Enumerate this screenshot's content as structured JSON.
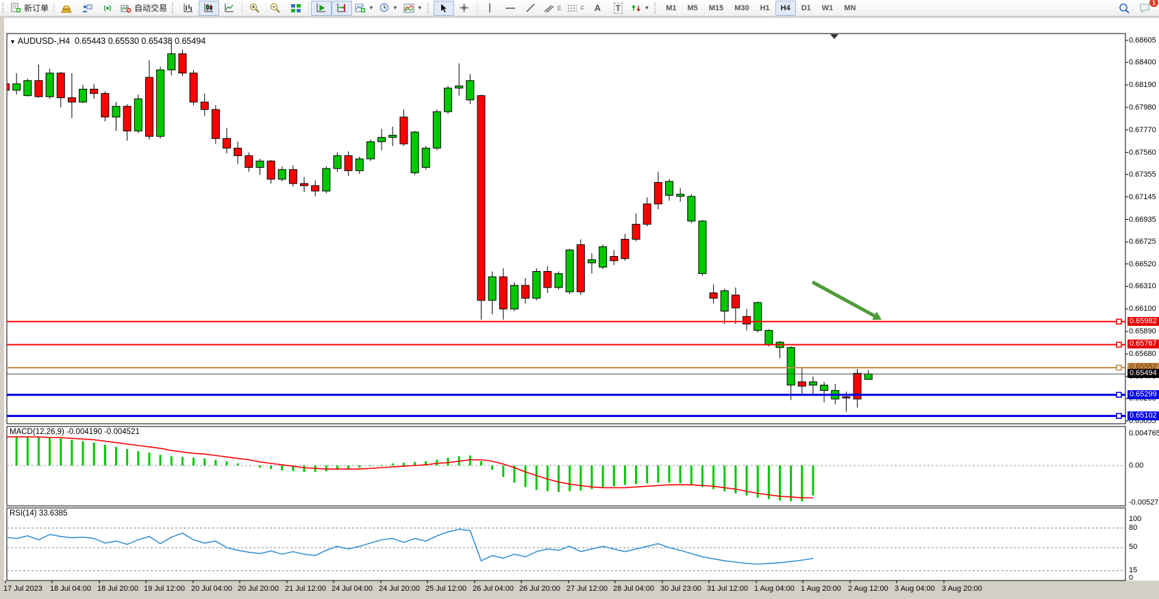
{
  "toolbar": {
    "new_order_label": "新订单",
    "autotrading_label": "自动交易",
    "timeframes": [
      "M1",
      "M5",
      "M15",
      "M30",
      "H1",
      "H4",
      "D1",
      "W1",
      "MN"
    ],
    "active_timeframe": "H4",
    "chat_badge": "1"
  },
  "icons": {
    "title_caret": "▼",
    "text_tool": "A",
    "label_tool": "T",
    "channel_sub": "E",
    "fibo_sub": "F"
  },
  "chart": {
    "title": "AUDUSD-,H4",
    "ohlc": "0.65443 0.65530 0.65438 0.65494",
    "macd_label": "MACD(12,26,9) -0.004190 -0.004521",
    "rsi_label": "RSI(14) 33.6385"
  },
  "chart_data": {
    "type": "candlestick",
    "symbol": "AUDUSD-",
    "timeframe": "H4",
    "colors": {
      "up": "#00C800",
      "down": "#FF0000",
      "wick": "#000000",
      "macd_hist": "#00C800",
      "macd_signal": "#FF0000",
      "rsi": "#3A92D0",
      "arrow": "#4E9C36",
      "bid": "#444444"
    },
    "price_axis_ticks": [
      "0.68605",
      "0.68400",
      "0.68190",
      "0.67980",
      "0.67770",
      "0.67560",
      "0.67355",
      "0.67145",
      "0.66935",
      "0.66725",
      "0.66520",
      "0.66310",
      "0.66100",
      "0.65890",
      "0.65680",
      "0.65470",
      "0.65265",
      "0.65055"
    ],
    "time_axis_labels": [
      "17 Jul 2023",
      "18 Jul 04:00",
      "18 Jul 20:00",
      "19 Jul 12:00",
      "20 Jul 04:00",
      "20 Jul 20:00",
      "21 Jul 12:00",
      "24 Jul 04:00",
      "24 Jul 20:00",
      "25 Jul 12:00",
      "26 Jul 04:00",
      "26 Jul 20:00",
      "27 Jul 12:00",
      "28 Jul 04:00",
      "30 Jul 23:00",
      "31 Jul 12:00",
      "1 Aug 04:00",
      "1 Aug 20:00",
      "2 Aug 12:00",
      "3 Aug 04:00",
      "3 Aug 20:00"
    ],
    "time_label_x": [
      5,
      73,
      142,
      210,
      279,
      347,
      416,
      484,
      553,
      621,
      690,
      758,
      827,
      895,
      964,
      1032,
      1101,
      1169,
      1238,
      1306,
      1375
    ],
    "candles": [
      [
        0.682,
        0.6824,
        0.6812,
        0.6814
      ],
      [
        0.6814,
        0.683,
        0.681,
        0.682
      ],
      [
        0.6809,
        0.6825,
        0.6808,
        0.6823
      ],
      [
        0.6823,
        0.6838,
        0.6807,
        0.6808
      ],
      [
        0.6808,
        0.6834,
        0.6806,
        0.683
      ],
      [
        0.683,
        0.6831,
        0.6798,
        0.6807
      ],
      [
        0.6807,
        0.683,
        0.6788,
        0.6803
      ],
      [
        0.6803,
        0.6819,
        0.6802,
        0.6815
      ],
      [
        0.6815,
        0.682,
        0.6806,
        0.6811
      ],
      [
        0.6811,
        0.6813,
        0.6785,
        0.6789
      ],
      [
        0.6789,
        0.6803,
        0.6776,
        0.6799
      ],
      [
        0.6799,
        0.6801,
        0.6767,
        0.6776
      ],
      [
        0.6776,
        0.681,
        0.6774,
        0.6806
      ],
      [
        0.6826,
        0.6842,
        0.6768,
        0.6771
      ],
      [
        0.6771,
        0.6836,
        0.6769,
        0.6833
      ],
      [
        0.6833,
        0.6859,
        0.6828,
        0.6848
      ],
      [
        0.6848,
        0.6852,
        0.6827,
        0.683
      ],
      [
        0.683,
        0.6833,
        0.68,
        0.6803
      ],
      [
        0.6803,
        0.6811,
        0.679,
        0.6796
      ],
      [
        0.6796,
        0.68,
        0.6764,
        0.6769
      ],
      [
        0.6769,
        0.6779,
        0.6755,
        0.676
      ],
      [
        0.676,
        0.6766,
        0.6745,
        0.6753
      ],
      [
        0.6753,
        0.6756,
        0.6738,
        0.6742
      ],
      [
        0.6742,
        0.675,
        0.6735,
        0.6748
      ],
      [
        0.6748,
        0.6749,
        0.6727,
        0.6731
      ],
      [
        0.6731,
        0.6743,
        0.6729,
        0.674
      ],
      [
        0.674,
        0.6744,
        0.6724,
        0.6727
      ],
      [
        0.6727,
        0.6733,
        0.6719,
        0.6725
      ],
      [
        0.6725,
        0.673,
        0.6715,
        0.672
      ],
      [
        0.672,
        0.6743,
        0.6718,
        0.6741
      ],
      [
        0.6741,
        0.6756,
        0.6738,
        0.6753
      ],
      [
        0.6753,
        0.6757,
        0.6734,
        0.6739
      ],
      [
        0.6739,
        0.6752,
        0.6736,
        0.675
      ],
      [
        0.675,
        0.6768,
        0.6748,
        0.6766
      ],
      [
        0.6766,
        0.6778,
        0.6758,
        0.677
      ],
      [
        0.677,
        0.678,
        0.6762,
        0.6772
      ],
      [
        0.6789,
        0.6796,
        0.6762,
        0.6764
      ],
      [
        0.6737,
        0.6776,
        0.6735,
        0.6775
      ],
      [
        0.6742,
        0.6762,
        0.674,
        0.676
      ],
      [
        0.676,
        0.6796,
        0.6758,
        0.6794
      ],
      [
        0.6794,
        0.6818,
        0.6792,
        0.6816
      ],
      [
        0.6816,
        0.6839,
        0.6809,
        0.6818
      ],
      [
        0.6805,
        0.6829,
        0.6801,
        0.6823
      ],
      [
        0.6809,
        0.681,
        0.66,
        0.6618
      ],
      [
        0.6618,
        0.6645,
        0.6605,
        0.664
      ],
      [
        0.664,
        0.6648,
        0.66,
        0.661
      ],
      [
        0.661,
        0.6635,
        0.6608,
        0.6632
      ],
      [
        0.6632,
        0.6639,
        0.6615,
        0.662
      ],
      [
        0.662,
        0.6648,
        0.6618,
        0.6645
      ],
      [
        0.6645,
        0.665,
        0.6625,
        0.663
      ],
      [
        0.663,
        0.6645,
        0.6628,
        0.6643
      ],
      [
        0.6626,
        0.6666,
        0.6624,
        0.6665
      ],
      [
        0.667,
        0.6675,
        0.6623,
        0.6626
      ],
      [
        0.6653,
        0.6662,
        0.6643,
        0.6656
      ],
      [
        0.6649,
        0.667,
        0.6647,
        0.6668
      ],
      [
        0.6659,
        0.6665,
        0.6651,
        0.6655
      ],
      [
        0.6675,
        0.668,
        0.6655,
        0.6657
      ],
      [
        0.6689,
        0.6699,
        0.6673,
        0.6675
      ],
      [
        0.6708,
        0.6714,
        0.6687,
        0.6689
      ],
      [
        0.6728,
        0.6738,
        0.6703,
        0.6708
      ],
      [
        0.6716,
        0.6731,
        0.6711,
        0.6729
      ],
      [
        0.6715,
        0.6723,
        0.671,
        0.6717
      ],
      [
        0.6692,
        0.6717,
        0.669,
        0.6715
      ],
      [
        0.6643,
        0.6693,
        0.6641,
        0.6692
      ],
      [
        0.6625,
        0.6633,
        0.6615,
        0.662
      ],
      [
        0.6608,
        0.6629,
        0.6596,
        0.6627
      ],
      [
        0.6623,
        0.663,
        0.6596,
        0.6611
      ],
      [
        0.6603,
        0.661,
        0.659,
        0.6596
      ],
      [
        0.659,
        0.6617,
        0.6588,
        0.6616
      ],
      [
        0.6577,
        0.6591,
        0.6575,
        0.659
      ],
      [
        0.6574,
        0.658,
        0.6564,
        0.6579
      ],
      [
        0.6539,
        0.6575,
        0.6525,
        0.6574
      ],
      [
        0.6542,
        0.6556,
        0.6531,
        0.6538
      ],
      [
        0.6539,
        0.6547,
        0.6529,
        0.6542
      ],
      [
        0.6534,
        0.6542,
        0.6523,
        0.6539
      ],
      [
        0.6526,
        0.654,
        0.6521,
        0.6534
      ],
      [
        0.6528,
        0.6533,
        0.6514,
        0.6527
      ],
      [
        0.655,
        0.6554,
        0.6518,
        0.6526
      ],
      [
        0.65443,
        0.6553,
        0.65438,
        0.65494
      ]
    ],
    "hlines": [
      {
        "price": 0.65982,
        "label": "0.65982",
        "color": "#FF0000",
        "lw": 2,
        "label_bg": "#E80000",
        "label_fg": "#FFFFFF"
      },
      {
        "price": 0.65767,
        "label": "0.65767",
        "color": "#FF0000",
        "lw": 2,
        "label_bg": "#E80000",
        "label_fg": "#FFFFFF"
      },
      {
        "price": 0.65552,
        "label": "0.65552",
        "color": "#C08A4B",
        "lw": 2,
        "label_bg": "#C08A4B",
        "label_fg": "#7A3300"
      },
      {
        "price": 0.65299,
        "label": "0.65299",
        "color": "#0000E6",
        "lw": 3,
        "label_bg": "#0000E6",
        "label_fg": "#FFFFFF"
      },
      {
        "price": 0.65102,
        "label": "0.65102",
        "color": "#0000E6",
        "lw": 3,
        "label_bg": "#0000E6",
        "label_fg": "#FFFFFF"
      }
    ],
    "bid": {
      "price": 0.65494,
      "label": "0.65494",
      "label_bg": "#000000",
      "label_fg": "#FFFFFF"
    },
    "macd": {
      "label": "MACD(12,26,9) -0.004190 -0.004521",
      "axis": {
        "top": "0.004765",
        "zero": "0.00",
        "bottom": "-0.005276"
      },
      "values": [
        0.0042,
        0.0041,
        0.004,
        0.004,
        0.0039,
        0.0038,
        0.0036,
        0.0034,
        0.0032,
        0.0029,
        0.0026,
        0.0023,
        0.002,
        0.0018,
        0.0015,
        0.0013,
        0.0012,
        0.0011,
        0.001,
        0.0008,
        0.0006,
        0.0003,
        0.0,
        -0.0003,
        -0.0005,
        -0.0007,
        -0.0008,
        -0.0009,
        -0.0009,
        -0.0008,
        -0.0006,
        -0.0005,
        -0.0003,
        -0.0001,
        0.0001,
        0.0003,
        0.0004,
        0.0005,
        0.0006,
        0.0008,
        0.0011,
        0.0013,
        0.0014,
        0.0006,
        -0.0006,
        -0.0016,
        -0.0024,
        -0.003,
        -0.0034,
        -0.0036,
        -0.0037,
        -0.0036,
        -0.0035,
        -0.0033,
        -0.0031,
        -0.0029,
        -0.0027,
        -0.0026,
        -0.0025,
        -0.0024,
        -0.0024,
        -0.0025,
        -0.0027,
        -0.003,
        -0.0033,
        -0.0036,
        -0.0039,
        -0.0042,
        -0.0045,
        -0.0047,
        -0.0049,
        -0.005,
        -0.005,
        -0.00419
      ],
      "signal": [
        0.004,
        0.004,
        0.004,
        0.004,
        0.0039,
        0.0039,
        0.0038,
        0.0037,
        0.0036,
        0.0034,
        0.0032,
        0.003,
        0.0028,
        0.0026,
        0.0024,
        0.0021,
        0.0019,
        0.0017,
        0.0016,
        0.0014,
        0.0012,
        0.001,
        0.0008,
        0.0005,
        0.0003,
        0.0001,
        -0.0001,
        -0.0003,
        -0.0004,
        -0.0005,
        -0.0005,
        -0.0005,
        -0.0005,
        -0.0004,
        -0.0003,
        -0.0002,
        -0.0001,
        0.0,
        0.0001,
        0.0003,
        0.0004,
        0.0006,
        0.0008,
        0.0008,
        0.0006,
        0.0002,
        -0.0003,
        -0.0009,
        -0.0014,
        -0.0019,
        -0.0023,
        -0.0026,
        -0.0028,
        -0.003,
        -0.0031,
        -0.0031,
        -0.0031,
        -0.003,
        -0.0029,
        -0.0028,
        -0.0027,
        -0.0027,
        -0.0027,
        -0.0028,
        -0.0029,
        -0.0031,
        -0.0033,
        -0.0036,
        -0.0039,
        -0.0041,
        -0.0043,
        -0.0044,
        -0.0045,
        -0.004521
      ]
    },
    "rsi": {
      "label": "RSI(14) 33.6385",
      "levels": [
        80,
        50,
        15
      ],
      "axis_labels": [
        "100",
        "80",
        "50",
        "15",
        "0"
      ],
      "values": [
        66,
        64,
        68,
        62,
        70,
        67,
        65,
        66,
        64,
        57,
        60,
        55,
        62,
        67,
        56,
        66,
        72,
        62,
        57,
        60,
        50,
        46,
        43,
        41,
        45,
        40,
        44,
        40,
        38,
        46,
        52,
        48,
        52,
        57,
        62,
        64,
        58,
        64,
        60,
        68,
        74,
        78,
        76,
        30,
        38,
        34,
        40,
        36,
        44,
        48,
        46,
        52,
        44,
        48,
        52,
        48,
        44,
        48,
        52,
        56,
        50,
        46,
        41,
        36,
        33,
        30,
        28,
        26,
        25,
        26,
        27,
        29,
        31,
        33.6385
      ]
    },
    "annotations": [
      {
        "type": "arrow",
        "from": [
          1186,
          389
        ],
        "to": [
          1287,
          444
        ],
        "color": "#4E9C36",
        "width": 5
      }
    ]
  }
}
